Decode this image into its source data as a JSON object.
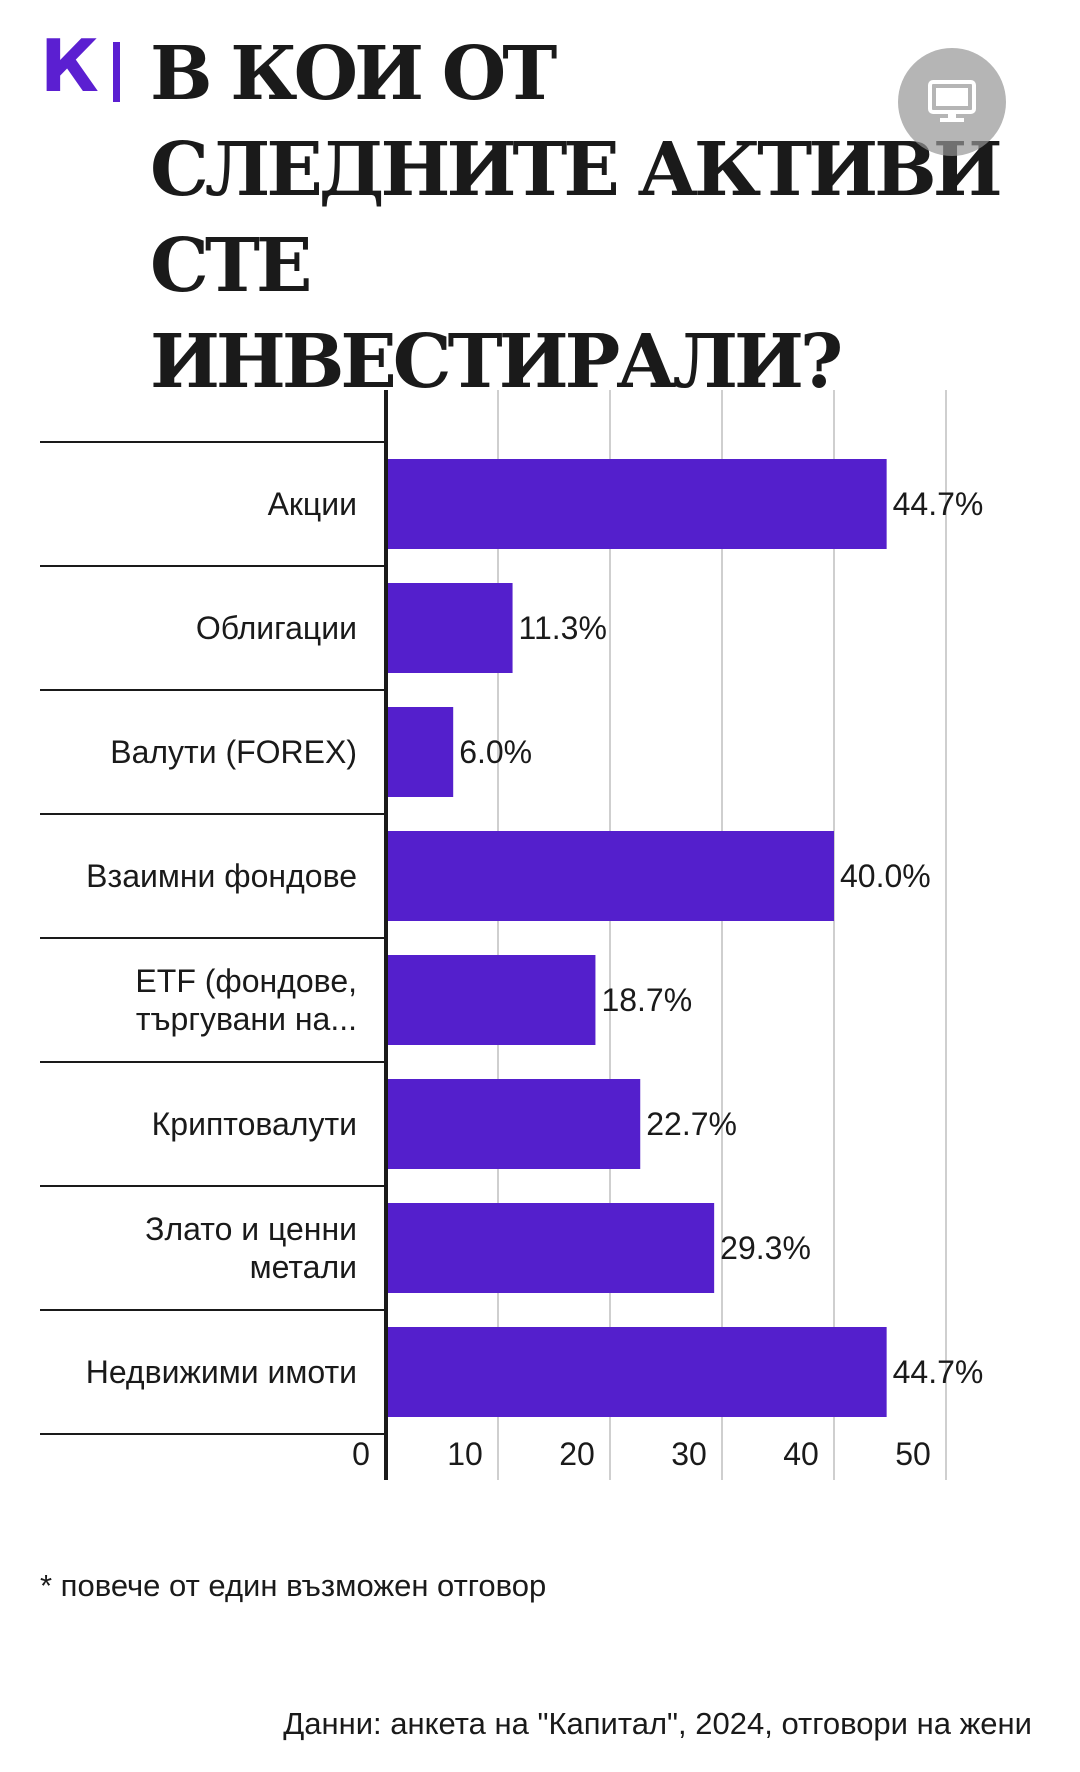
{
  "header": {
    "logo_letter": "К",
    "title": "В кои от следните активи сте инвестирали?"
  },
  "overlay": {
    "icon": "monitor-icon"
  },
  "chart_data": {
    "type": "bar",
    "orientation": "horizontal",
    "categories": [
      "Акции",
      "Облигации",
      "Валути (FOREX)",
      "Взаимни фондове",
      "ETF (фондове, търгувани на...",
      "Криптовалути",
      "Злато и ценни метали",
      "Недвижими имоти"
    ],
    "category_lines": [
      [
        "Акции"
      ],
      [
        "Облигации"
      ],
      [
        "Валути (FOREX)"
      ],
      [
        "Взаимни фондове"
      ],
      [
        "ETF (фондове,",
        "търгувани на..."
      ],
      [
        "Криптовалути"
      ],
      [
        "Злато и ценни",
        "метали"
      ],
      [
        "Недвижими имоти"
      ]
    ],
    "values": [
      44.7,
      11.3,
      6.0,
      40.0,
      18.7,
      22.7,
      29.3,
      44.7
    ],
    "value_labels": [
      "44.7%",
      "11.3%",
      "6.0%",
      "40.0%",
      "18.7%",
      "22.7%",
      "29.3%",
      "44.7%"
    ],
    "x_ticks": [
      "0",
      "10",
      "20",
      "30",
      "40",
      "50"
    ],
    "xlim": [
      0,
      50
    ],
    "grid": true,
    "bar_color": "#541fcc"
  },
  "footer": {
    "note": "* повече от един възможен отговор",
    "source": "Данни: анкета на \"Капитал\", 2024, отговори на жени"
  }
}
